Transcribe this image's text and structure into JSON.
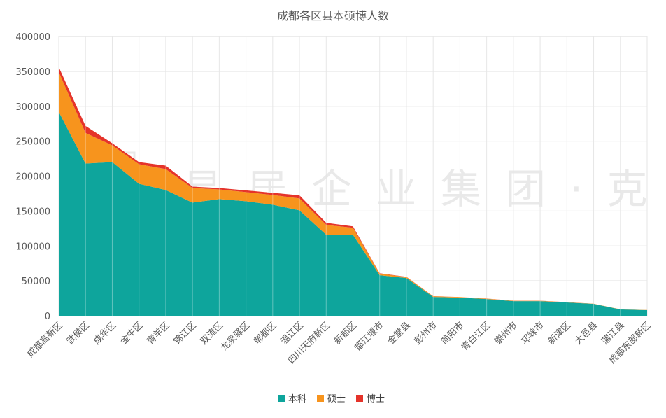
{
  "chart_data": {
    "type": "area",
    "stacked": true,
    "title": "成都各区县本硕博人数",
    "xlabel": "",
    "ylabel": "",
    "ylim": [
      0,
      400000
    ],
    "yticks": [
      0,
      50000,
      100000,
      150000,
      200000,
      250000,
      300000,
      350000,
      400000
    ],
    "grid": true,
    "legend_position": "bottom",
    "categories": [
      "成都高新区",
      "武侯区",
      "成华区",
      "金牛区",
      "青羊区",
      "锦江区",
      "双流区",
      "龙泉驿区",
      "郫都区",
      "温江区",
      "四川天府新区",
      "新都区",
      "都江堰市",
      "金堂县",
      "彭州市",
      "简阳市",
      "青白江区",
      "崇州市",
      "邛崃市",
      "新津区",
      "大邑县",
      "蒲江县",
      "成都东部新区"
    ],
    "series": [
      {
        "name": "本科",
        "color": "#0ea59c",
        "values": [
          292000,
          218000,
          220000,
          189000,
          180000,
          162000,
          167000,
          164000,
          159000,
          151000,
          116000,
          116000,
          58000,
          54000,
          27000,
          26000,
          24000,
          21000,
          21000,
          19000,
          17000,
          9000,
          8000
        ]
      },
      {
        "name": "硕士",
        "color": "#f7941d",
        "values": [
          57000,
          44000,
          24000,
          28000,
          30000,
          21000,
          14000,
          13000,
          14000,
          17000,
          14000,
          10000,
          2500,
          1500,
          1000,
          800,
          600,
          500,
          500,
          400,
          300,
          200,
          200
        ]
      },
      {
        "name": "博士",
        "color": "#e5332a",
        "values": [
          7000,
          10000,
          3000,
          3000,
          5000,
          2000,
          2000,
          2500,
          3000,
          4500,
          3000,
          2000,
          400,
          200,
          100,
          100,
          100,
          100,
          100,
          100,
          50,
          50,
          50
        ]
      }
    ]
  }
}
